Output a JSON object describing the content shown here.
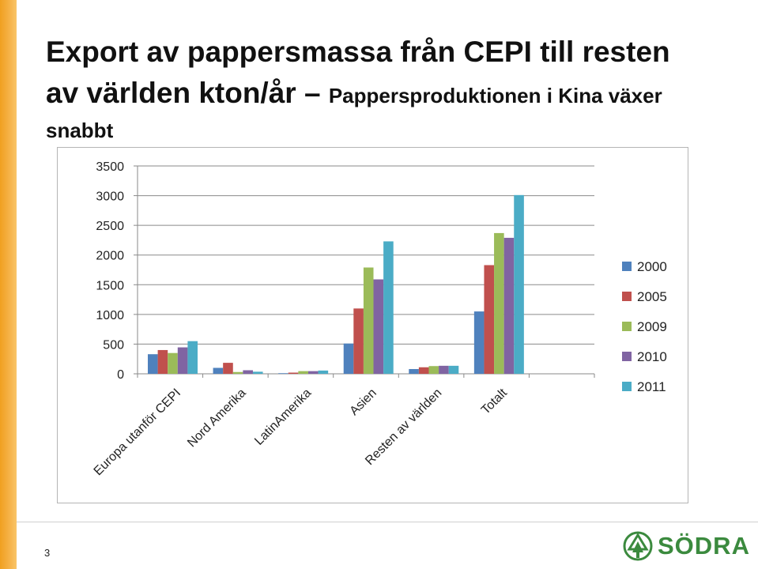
{
  "slide": {
    "title_line1": "Export av pappersmassa från CEPI till resten",
    "title_line2_big": "av världen kton/år – ",
    "title_line2_small": "Pappersproduktionen i Kina växer",
    "title_line3": "snabbt",
    "page_number": "3",
    "logo_text": "SÖDRA",
    "accent_color": "#f0a020",
    "logo_color": "#3b8a3e"
  },
  "chart_data": {
    "type": "bar",
    "categories": [
      "Europa utanför CEPI",
      "Nord Amerika",
      "LatinAmerika",
      "Asien",
      "Resten av världen",
      "Totalt",
      ""
    ],
    "series": [
      {
        "name": "2000",
        "color": "#4f81bd",
        "values": [
          330,
          100,
          10,
          510,
          80,
          1050,
          null
        ]
      },
      {
        "name": "2005",
        "color": "#c0504d",
        "values": [
          400,
          185,
          20,
          1100,
          110,
          1830,
          null
        ]
      },
      {
        "name": "2009",
        "color": "#9bbb59",
        "values": [
          350,
          30,
          45,
          1790,
          130,
          2370,
          null
        ]
      },
      {
        "name": "2010",
        "color": "#8064a2",
        "values": [
          445,
          60,
          45,
          1590,
          135,
          2290,
          null
        ]
      },
      {
        "name": "2011",
        "color": "#4bacc6",
        "values": [
          550,
          35,
          55,
          2230,
          135,
          3010,
          null
        ]
      }
    ],
    "ylim": [
      0,
      3500
    ],
    "yticks": [
      "0",
      "500",
      "1000",
      "1500",
      "2000",
      "2500",
      "3000",
      "3500"
    ],
    "grid": true,
    "legend": "right"
  }
}
